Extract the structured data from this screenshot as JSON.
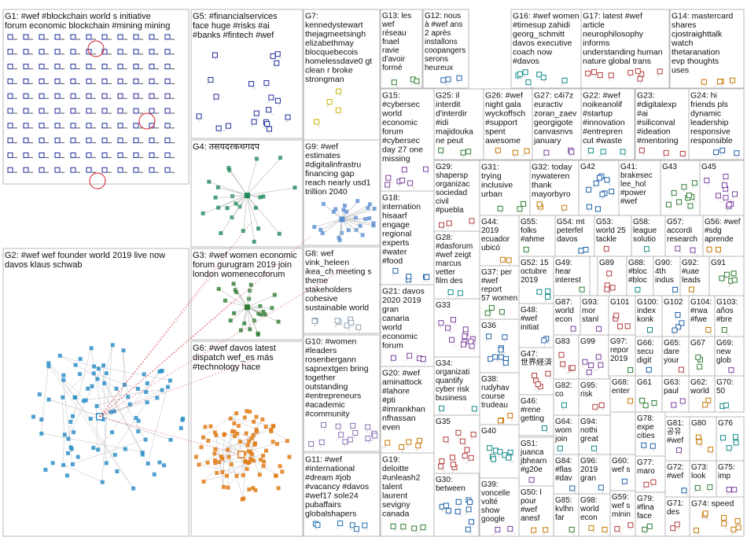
{
  "title": "",
  "colors": {
    "G1": "#1b2a9a",
    "G2": "#2e8fc9",
    "G3": "#2e7d32",
    "G4": "#1e8a5a",
    "G5": "#1b2a9a",
    "G6": "#e07b16",
    "G7": "#c7b400",
    "G8": "#8aa1b7",
    "G9": "#5b8fd1",
    "G10": "#8b6fb5",
    "G11": "#1f6fb2",
    "edge": "#c0c0c0",
    "accent": "#d11a2a"
  },
  "groups": [
    {
      "id": "G1",
      "label": "G1: #wef #blockchain world s initiative forum economic blockchain #mining mining"
    },
    {
      "id": "G2",
      "label": "G2: #wef wef founder world 2019 live now davos klaus schwab"
    },
    {
      "id": "G3",
      "label": "G3: #wef women economic forum gurugram 2019 join london womenecoforum delhi"
    },
    {
      "id": "G4",
      "label": "G4: तसयदरकथगदप"
    },
    {
      "id": "G5",
      "label": "G5: #financialservices face huge #risks #ai #banks #fintech #wef #finserv #artificialintelligence"
    },
    {
      "id": "G6",
      "label": "G6: #wef davos latest dispatch wef_es más #technology hace #environment #protestas"
    },
    {
      "id": "G7",
      "label": "G7: kennedystewart thejagmeetsingh elizabethmay blocquebecois homelessdave0 gt clean r broke strongman"
    },
    {
      "id": "G8",
      "label": "G8: wef vink_heleen ikea_ch meeting s theme stakeholders cohesive sustainable world"
    },
    {
      "id": "G9",
      "label": "G9: #wef estimates #digitalinfrastruct financing gap reach nearly usd1 trillion 2040"
    },
    {
      "id": "G10",
      "label": "G10: #women #leaders rosenbergann sapnextgen bring together outstanding #entrepreneurs #academic #community"
    },
    {
      "id": "G11",
      "label": "G11: #wef #international #dream #job #vacancy #davos #wef17 sole24 pubaffairs globalshapers"
    },
    {
      "id": "G12",
      "label": "G12: nous à #wef ans 2 après installons coopangerstech serons heureux"
    },
    {
      "id": "G13",
      "label": "G13: les wef réseau fnael ravie d'avoir formé étudiants la_fnael"
    },
    {
      "id": "G14",
      "label": "G14: mastercard shares cjostraighttalk watch thetaranation evp thoughts uses"
    },
    {
      "id": "G15",
      "label": "G15: #cybersec world economic forum #cybersec day 27 one missing"
    },
    {
      "id": "G16",
      "label": "G16: #wef women #timesup zahidi georg_schmitt davos executive coach now #davos"
    },
    {
      "id": "G17",
      "label": "G17: latest #wef article neurophilosophy informs understanding human nature global trans"
    },
    {
      "id": "G18",
      "label": "G18: international hisaarf engage regional experts #water #food"
    },
    {
      "id": "G19",
      "label": "G19: deloitte #unleash2 talent laurent sevigny canada"
    },
    {
      "id": "G20",
      "label": "G20: #wef aminattock #lahore #pti #imrankhan nfhassan even"
    },
    {
      "id": "G21",
      "label": "G21: davos 2020 2019 gran canaria world economic forum outlines"
    },
    {
      "id": "G22",
      "label": "G22: #wef noikeanolife #startup #innovation #entrepren cut #waste deliver"
    },
    {
      "id": "G23",
      "label": "G23: #digitalexp #ai #siliconvall #ideation #mentoring #veille"
    },
    {
      "id": "G24",
      "label": "G24: hi friends pls dynamic leadership responsive responsible approach"
    },
    {
      "id": "G25",
      "label": "G25: il interdit d'interdire #idi majidouka ne peut pas dire aujourd"
    },
    {
      "id": "G26",
      "label": "G26: #wef night gala wyckoffsch #support spent awesome bassclassr"
    },
    {
      "id": "G27",
      "label": "G27: c4i7z euractiv zoran_zaev georgigotev canvasnvs january 2018"
    },
    {
      "id": "G28",
      "label": "G28: #dasforum #wef zeigt marcus vetter film des"
    },
    {
      "id": "G29",
      "label": "G29: shapersp organizac sociedad civil #puebla"
    },
    {
      "id": "G30",
      "label": "G30: between"
    },
    {
      "id": "G31",
      "label": "G31: trying inclusive urban policies city planning"
    },
    {
      "id": "G32",
      "label": "G32: today nywateren thank mayorbyro buffalosew"
    },
    {
      "id": "G33",
      "label": "G33"
    },
    {
      "id": "G34",
      "label": "G34: organizati quantify cyber risk business"
    },
    {
      "id": "G35",
      "label": "G35"
    },
    {
      "id": "G36",
      "label": "G36"
    },
    {
      "id": "G37",
      "label": "G37: per #wef report 57 women held"
    },
    {
      "id": "G38",
      "label": "G38: rudyhav course trudeau typical"
    },
    {
      "id": "G39",
      "label": "G39: voncelle volté show google"
    },
    {
      "id": "G40",
      "label": "G40"
    },
    {
      "id": "G41",
      "label": "G41: brakesec lee_hol #power #wef"
    },
    {
      "id": "G42",
      "label": "G42"
    },
    {
      "id": "G43",
      "label": "G43"
    },
    {
      "id": "G44",
      "label": "G44: 2019 ecuador ubicó puesto"
    },
    {
      "id": "G45",
      "label": "G45"
    },
    {
      "id": "G46",
      "label": "G46: #rene getting cheap"
    },
    {
      "id": "G47",
      "label": "G47: 世界経済フォーラムが金属"
    },
    {
      "id": "G48",
      "label": "G48: #wef initiative wefboo"
    },
    {
      "id": "G49",
      "label": "G49: hear interesti global"
    },
    {
      "id": "G50",
      "label": "G50: l pour #wef anesf"
    },
    {
      "id": "G51",
      "label": "G51: juanca jbhearn #g20e"
    },
    {
      "id": "G52",
      "label": "G52: 15 octubre 2019"
    },
    {
      "id": "G53",
      "label": "G53: world 25 tackle accoun"
    },
    {
      "id": "G54",
      "label": "G54: mt peterfel davos uganda"
    },
    {
      "id": "G55",
      "label": "G55: folks #ahme attend"
    },
    {
      "id": "G56",
      "label": "G56: #wef #sdg aprende"
    },
    {
      "id": "G57",
      "label": "G57: accordi research institut"
    },
    {
      "id": "G58",
      "label": "G58: league solution deman"
    },
    {
      "id": "G59",
      "label": "G59: wef s minin"
    },
    {
      "id": "G60",
      "label": "G60: wef s minin"
    },
    {
      "id": "G61",
      "label": "G61"
    },
    {
      "id": "G62",
      "label": "G62: world #wef"
    },
    {
      "id": "G63",
      "label": "G63: paul now"
    },
    {
      "id": "G64",
      "label": "G64: wom join"
    },
    {
      "id": "G65",
      "label": "G65: dare your"
    },
    {
      "id": "G66",
      "label": "G66: secu digit"
    },
    {
      "id": "G67",
      "label": "G67"
    },
    {
      "id": "G68",
      "label": "G68: enter gove"
    },
    {
      "id": "G69",
      "label": "G69: new glob"
    },
    {
      "id": "G70",
      "label": "G70: 50 years"
    },
    {
      "id": "G71",
      "label": "G71: des"
    },
    {
      "id": "G72",
      "label": "G72: #wef"
    },
    {
      "id": "G73",
      "label": "G73: look forw #we"
    },
    {
      "id": "G74",
      "label": "G74: speed"
    },
    {
      "id": "G75",
      "label": "G75: imp inve shift"
    },
    {
      "id": "G76",
      "label": "G76"
    },
    {
      "id": "G77",
      "label": "G77: maro veilig"
    },
    {
      "id": "G78",
      "label": "G78: expe cities"
    },
    {
      "id": "G79",
      "label": "G79: #fina face"
    },
    {
      "id": "G80",
      "label": "G80"
    },
    {
      "id": "G81",
      "label": "G81: 공유 #wef colla"
    },
    {
      "id": "G82",
      "label": "G82: co taine"
    },
    {
      "id": "G83",
      "label": "G83"
    },
    {
      "id": "G84",
      "label": "G84: #flas #dav"
    },
    {
      "id": "G85",
      "label": "G85: kvlhna far"
    },
    {
      "id": "G86",
      "label": "G86: #bloc #bloc"
    },
    {
      "id": "G87",
      "label": "G87: world econ"
    },
    {
      "id": "G88",
      "label": "G88: #bloc #bloc"
    },
    {
      "id": "G89",
      "label": "G89"
    },
    {
      "id": "G90",
      "label": "G90: 4th indus"
    },
    {
      "id": "G91",
      "label": "G91"
    },
    {
      "id": "G92",
      "label": "G92: #uae leads"
    },
    {
      "id": "G93",
      "label": "G93: mor stanl"
    },
    {
      "id": "G94",
      "label": "G94: nothi great"
    },
    {
      "id": "G95",
      "label": "G95: risk"
    },
    {
      "id": "G96",
      "label": "G96: 2019 gran"
    },
    {
      "id": "G97",
      "label": "G97: report 2019"
    },
    {
      "id": "G98",
      "label": "G98: world econ"
    },
    {
      "id": "G99",
      "label": "G99"
    },
    {
      "id": "G100",
      "label": "G100: index konk"
    },
    {
      "id": "G101",
      "label": "G101"
    },
    {
      "id": "G102",
      "label": "G102"
    },
    {
      "id": "G103",
      "label": "G103: años #bre"
    },
    {
      "id": "G104",
      "label": "G104: #rwa #fwe"
    }
  ]
}
